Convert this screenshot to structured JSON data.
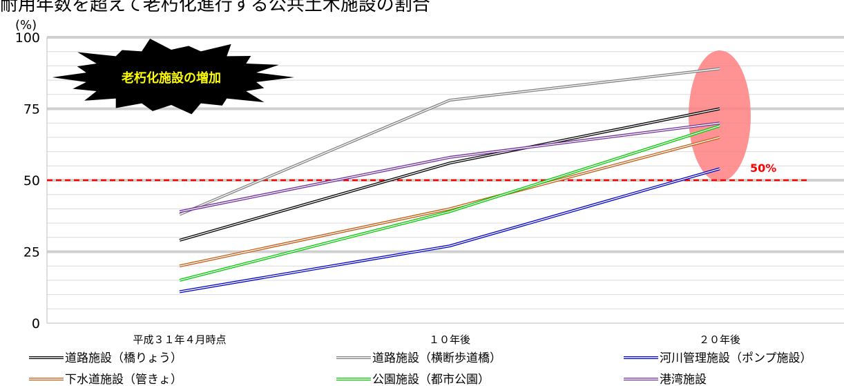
{
  "title": "耐用年数を超えて老朽化進行する公共土木施設の割合",
  "chart_data": {
    "type": "line",
    "ylabel": "(%)",
    "ylim": [
      0,
      100
    ],
    "yticks": [
      0,
      25,
      50,
      75,
      100
    ],
    "minor_grid_step": 5,
    "categories": [
      "平成３１年４月時点",
      "１０年後",
      "２０年後"
    ],
    "series": [
      {
        "name": "道路施設（橋りょう）",
        "color": "#000000",
        "values": [
          29,
          56,
          75
        ]
      },
      {
        "name": "道路施設（横断歩道橋）",
        "color": "#808080",
        "values": [
          38,
          78,
          89
        ]
      },
      {
        "name": "河川管理施設（ポンプ施設）",
        "color": "#0000CC",
        "values": [
          11,
          27,
          54
        ]
      },
      {
        "name": "下水道施設（管きょ）",
        "color": "#C55A11",
        "values": [
          20,
          40,
          65
        ]
      },
      {
        "name": "公園施設（都市公園）",
        "color": "#00CC00",
        "values": [
          15,
          39,
          69
        ]
      },
      {
        "name": "港湾施設",
        "color": "#7030A0",
        "values": [
          39,
          58,
          70
        ]
      }
    ],
    "reference_line": {
      "value": 50,
      "label": "50%",
      "color": "#FF0000",
      "style": "dashed"
    },
    "callout": {
      "text": "老朽化施設の増加",
      "text_color": "#FFFF00",
      "fill": "#000000",
      "shape": "explosion"
    },
    "highlight": {
      "category": "２０年後",
      "fill": "#FF8080"
    },
    "legend": {
      "placement": "bottom",
      "columns": 3
    },
    "grid": true
  }
}
